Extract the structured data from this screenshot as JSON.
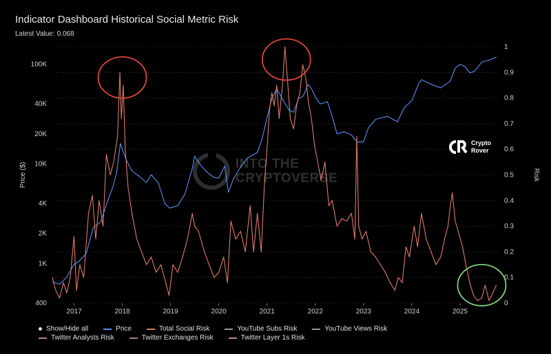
{
  "header": {
    "title": "Indicator Dashboard Historical Social Metric Risk",
    "latest_label": "Latest Value:",
    "latest_value": "0.068"
  },
  "branding": {
    "logo_line1": "Crypto",
    "logo_line2": "Rover",
    "watermark_line1": "INTO THE",
    "watermark_line2": "CRYPTOVERSE"
  },
  "colors": {
    "price": "#5b8ff0",
    "total_social_risk": "#e07a6c",
    "highlight_red": "#e0453a",
    "highlight_green": "#7ed07e",
    "grid": "#3a3a3a"
  },
  "legend": {
    "show_hide_all": "Show/Hide all",
    "items": [
      {
        "label": "Price",
        "color": "#5b8ff0"
      },
      {
        "label": "Total Social Risk",
        "color": "#e07a6c"
      },
      {
        "label": "YouTube Subs Risk",
        "color": "#9a9a9a"
      },
      {
        "label": "YouTube Views Risk",
        "color": "#9a9a9a"
      },
      {
        "label": "Twitter Analysts Risk",
        "color": "#b0877f"
      },
      {
        "label": "Twitter Exchanges Risk",
        "color": "#b07a9a"
      },
      {
        "label": "Twitter Layer 1s Risk",
        "color": "#c08a8a"
      }
    ]
  },
  "chart_data": {
    "type": "line",
    "title": "Indicator Dashboard Historical Social Metric Risk",
    "subtitle": "Latest Value: 0.068",
    "left_axis": {
      "label": "Price ($)",
      "scale": "log",
      "range": [
        400,
        150000
      ],
      "ticks": [
        {
          "value": 400,
          "label": "400"
        },
        {
          "value": 1000,
          "label": "1K"
        },
        {
          "value": 2000,
          "label": "2K"
        },
        {
          "value": 4000,
          "label": "4K"
        },
        {
          "value": 10000,
          "label": "10K"
        },
        {
          "value": 20000,
          "label": "20K"
        },
        {
          "value": 40000,
          "label": "40K"
        },
        {
          "value": 100000,
          "label": "100K"
        }
      ]
    },
    "right_axis": {
      "label": "Risk",
      "scale": "linear",
      "range": [
        0,
        1
      ],
      "ticks": [
        0,
        0.1,
        0.2,
        0.3,
        0.4,
        0.5,
        0.6,
        0.7,
        0.8,
        0.9,
        1
      ],
      "tick_labels": [
        "0",
        "0.1",
        "0.2",
        "0.3",
        "0.4",
        "0.5",
        "0.6",
        "0.7",
        "0.8",
        "0.9",
        "1"
      ]
    },
    "x_axis": {
      "range": [
        2016.55,
        2025.8
      ],
      "ticks": [
        2017,
        2018,
        2019,
        2020,
        2021,
        2022,
        2023,
        2024,
        2025
      ],
      "tick_labels": [
        "2017",
        "2018",
        "2019",
        "2020",
        "2021",
        "2022",
        "2023",
        "2024",
        "2025"
      ]
    },
    "grid": "horizontal",
    "series": [
      {
        "name": "Price",
        "axis": "left",
        "points": [
          [
            2016.55,
            650
          ],
          [
            2016.7,
            620
          ],
          [
            2016.85,
            730
          ],
          [
            2017.0,
            980
          ],
          [
            2017.1,
            1050
          ],
          [
            2017.25,
            1250
          ],
          [
            2017.4,
            2300
          ],
          [
            2017.55,
            2600
          ],
          [
            2017.7,
            4300
          ],
          [
            2017.8,
            5800
          ],
          [
            2017.88,
            8000
          ],
          [
            2017.96,
            16000
          ],
          [
            2018.0,
            14000
          ],
          [
            2018.1,
            10500
          ],
          [
            2018.2,
            8500
          ],
          [
            2018.35,
            7500
          ],
          [
            2018.5,
            6500
          ],
          [
            2018.6,
            7800
          ],
          [
            2018.75,
            6400
          ],
          [
            2018.88,
            4000
          ],
          [
            2018.98,
            3600
          ],
          [
            2019.15,
            3800
          ],
          [
            2019.3,
            5000
          ],
          [
            2019.45,
            9000
          ],
          [
            2019.5,
            12000
          ],
          [
            2019.6,
            10000
          ],
          [
            2019.75,
            8300
          ],
          [
            2019.9,
            7300
          ],
          [
            2020.0,
            7200
          ],
          [
            2020.12,
            9500
          ],
          [
            2020.2,
            5200
          ],
          [
            2020.3,
            7000
          ],
          [
            2020.45,
            9300
          ],
          [
            2020.6,
            11500
          ],
          [
            2020.8,
            13000
          ],
          [
            2020.9,
            18000
          ],
          [
            2021.0,
            29000
          ],
          [
            2021.1,
            45000
          ],
          [
            2021.2,
            57000
          ],
          [
            2021.35,
            42000
          ],
          [
            2021.45,
            35000
          ],
          [
            2021.55,
            33000
          ],
          [
            2021.65,
            45000
          ],
          [
            2021.75,
            48000
          ],
          [
            2021.85,
            63000
          ],
          [
            2021.92,
            57000
          ],
          [
            2022.0,
            47000
          ],
          [
            2022.1,
            40000
          ],
          [
            2022.25,
            42000
          ],
          [
            2022.35,
            30000
          ],
          [
            2022.45,
            20000
          ],
          [
            2022.6,
            21000
          ],
          [
            2022.75,
            19500
          ],
          [
            2022.87,
            16500
          ],
          [
            2023.0,
            16700
          ],
          [
            2023.1,
            23000
          ],
          [
            2023.25,
            28000
          ],
          [
            2023.5,
            30000
          ],
          [
            2023.7,
            26500
          ],
          [
            2023.85,
            37000
          ],
          [
            2024.0,
            43000
          ],
          [
            2024.15,
            65000
          ],
          [
            2024.2,
            70000
          ],
          [
            2024.4,
            63000
          ],
          [
            2024.6,
            58000
          ],
          [
            2024.8,
            68000
          ],
          [
            2024.9,
            92000
          ],
          [
            2025.0,
            100000
          ],
          [
            2025.1,
            95000
          ],
          [
            2025.2,
            82000
          ],
          [
            2025.3,
            85000
          ],
          [
            2025.45,
            105000
          ],
          [
            2025.6,
            110000
          ],
          [
            2025.75,
            118000
          ]
        ]
      },
      {
        "name": "Total Social Risk",
        "axis": "right",
        "points": [
          [
            2016.55,
            0.1
          ],
          [
            2016.62,
            0.05
          ],
          [
            2016.7,
            0.02
          ],
          [
            2016.78,
            0.08
          ],
          [
            2016.85,
            0.04
          ],
          [
            2016.92,
            0.1
          ],
          [
            2017.0,
            0.26
          ],
          [
            2017.05,
            0.05
          ],
          [
            2017.12,
            0.15
          ],
          [
            2017.2,
            0.1
          ],
          [
            2017.3,
            0.35
          ],
          [
            2017.38,
            0.42
          ],
          [
            2017.45,
            0.25
          ],
          [
            2017.52,
            0.4
          ],
          [
            2017.6,
            0.3
          ],
          [
            2017.67,
            0.58
          ],
          [
            2017.75,
            0.5
          ],
          [
            2017.82,
            0.55
          ],
          [
            2017.9,
            0.65
          ],
          [
            2017.95,
            0.9
          ],
          [
            2017.98,
            0.72
          ],
          [
            2018.02,
            0.85
          ],
          [
            2018.06,
            0.6
          ],
          [
            2018.12,
            0.45
          ],
          [
            2018.2,
            0.35
          ],
          [
            2018.3,
            0.25
          ],
          [
            2018.4,
            0.2
          ],
          [
            2018.5,
            0.15
          ],
          [
            2018.6,
            0.18
          ],
          [
            2018.7,
            0.12
          ],
          [
            2018.8,
            0.15
          ],
          [
            2018.9,
            0.08
          ],
          [
            2018.97,
            0.03
          ],
          [
            2019.05,
            0.15
          ],
          [
            2019.15,
            0.12
          ],
          [
            2019.25,
            0.18
          ],
          [
            2019.35,
            0.25
          ],
          [
            2019.45,
            0.35
          ],
          [
            2019.5,
            0.3
          ],
          [
            2019.58,
            0.28
          ],
          [
            2019.7,
            0.2
          ],
          [
            2019.8,
            0.15
          ],
          [
            2019.9,
            0.1
          ],
          [
            2020.0,
            0.12
          ],
          [
            2020.1,
            0.18
          ],
          [
            2020.18,
            0.08
          ],
          [
            2020.25,
            0.32
          ],
          [
            2020.35,
            0.25
          ],
          [
            2020.45,
            0.28
          ],
          [
            2020.55,
            0.2
          ],
          [
            2020.65,
            0.38
          ],
          [
            2020.72,
            0.2
          ],
          [
            2020.8,
            0.35
          ],
          [
            2020.88,
            0.2
          ],
          [
            2020.95,
            0.48
          ],
          [
            2021.0,
            0.6
          ],
          [
            2021.05,
            0.75
          ],
          [
            2021.1,
            0.82
          ],
          [
            2021.15,
            0.77
          ],
          [
            2021.2,
            0.85
          ],
          [
            2021.25,
            0.72
          ],
          [
            2021.32,
            0.85
          ],
          [
            2021.37,
            1.0
          ],
          [
            2021.42,
            0.88
          ],
          [
            2021.48,
            0.72
          ],
          [
            2021.55,
            0.68
          ],
          [
            2021.62,
            0.78
          ],
          [
            2021.68,
            0.82
          ],
          [
            2021.74,
            0.93
          ],
          [
            2021.8,
            0.88
          ],
          [
            2021.86,
            0.78
          ],
          [
            2021.92,
            0.72
          ],
          [
            2021.98,
            0.62
          ],
          [
            2022.05,
            0.55
          ],
          [
            2022.12,
            0.48
          ],
          [
            2022.2,
            0.55
          ],
          [
            2022.28,
            0.38
          ],
          [
            2022.35,
            0.4
          ],
          [
            2022.45,
            0.3
          ],
          [
            2022.55,
            0.33
          ],
          [
            2022.65,
            0.32
          ],
          [
            2022.75,
            0.35
          ],
          [
            2022.82,
            0.25
          ],
          [
            2022.86,
            0.65
          ],
          [
            2022.9,
            0.3
          ],
          [
            2022.97,
            0.25
          ],
          [
            2023.05,
            0.28
          ],
          [
            2023.15,
            0.2
          ],
          [
            2023.25,
            0.18
          ],
          [
            2023.35,
            0.15
          ],
          [
            2023.45,
            0.12
          ],
          [
            2023.55,
            0.08
          ],
          [
            2023.65,
            0.05
          ],
          [
            2023.72,
            0.1
          ],
          [
            2023.8,
            0.08
          ],
          [
            2023.88,
            0.22
          ],
          [
            2023.95,
            0.18
          ],
          [
            2024.05,
            0.3
          ],
          [
            2024.12,
            0.22
          ],
          [
            2024.2,
            0.35
          ],
          [
            2024.3,
            0.25
          ],
          [
            2024.4,
            0.2
          ],
          [
            2024.5,
            0.15
          ],
          [
            2024.6,
            0.18
          ],
          [
            2024.68,
            0.25
          ],
          [
            2024.75,
            0.3
          ],
          [
            2024.8,
            0.38
          ],
          [
            2024.84,
            0.43
          ],
          [
            2024.9,
            0.32
          ],
          [
            2024.96,
            0.28
          ],
          [
            2025.05,
            0.22
          ],
          [
            2025.12,
            0.15
          ],
          [
            2025.2,
            0.08
          ],
          [
            2025.28,
            0.03
          ],
          [
            2025.36,
            0.01
          ],
          [
            2025.45,
            0.02
          ],
          [
            2025.52,
            0.07
          ],
          [
            2025.6,
            0.01
          ],
          [
            2025.68,
            0.04
          ],
          [
            2025.75,
            0.07
          ]
        ]
      }
    ],
    "annotations": [
      {
        "type": "circle",
        "color": "red",
        "x": 2018.0,
        "y": 0.88,
        "axis": "right"
      },
      {
        "type": "circle",
        "color": "red",
        "x": 2021.4,
        "y": 0.95,
        "axis": "right"
      },
      {
        "type": "circle",
        "color": "green",
        "x": 2025.45,
        "y": 0.07,
        "axis": "right"
      }
    ]
  }
}
